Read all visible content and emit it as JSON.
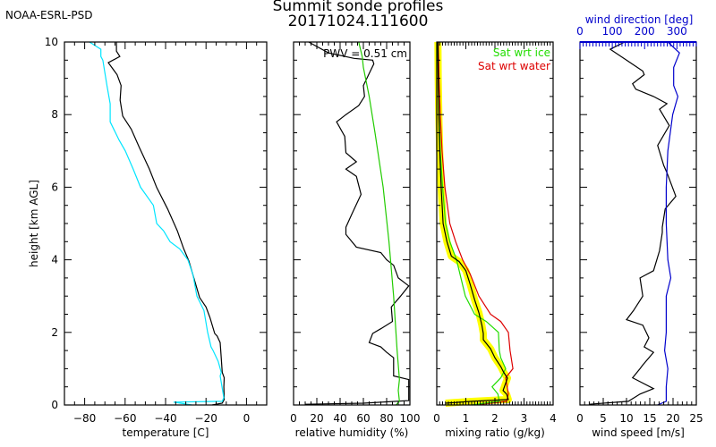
{
  "header": {
    "org": "NOAA-ESRL-PSD",
    "title": "Summit sonde profiles",
    "subtitle": "20171024.111600"
  },
  "colors": {
    "temperature": "#000000",
    "dewpoint": "#00e5ff",
    "rh": "#000000",
    "rh_ice": "#22cc00",
    "mixing": "#000000",
    "mixing_highlight": "#ffff00",
    "sat_ice": "#22dd00",
    "sat_water": "#dd0000",
    "wind_speed": "#000000",
    "wind_dir": "#0000cc"
  },
  "chart_data": [
    {
      "type": "line",
      "name": "temperature",
      "xlabel": "temperature [C]",
      "ylabel": "height [km AGL]",
      "xlim": [
        -90,
        10
      ],
      "ylim": [
        0,
        10
      ],
      "xticks": [
        -80,
        -60,
        -40,
        -20,
        0
      ],
      "yticks": [
        0,
        2,
        4,
        6,
        8,
        10
      ],
      "series": [
        {
          "name": "temperature",
          "color": "#000000",
          "points": [
            [
              -17,
              0
            ],
            [
              -12,
              0.05
            ],
            [
              -11,
              0.15
            ],
            [
              -11.2,
              0.5
            ],
            [
              -11,
              0.75
            ],
            [
              -12,
              0.9
            ],
            [
              -12.5,
              1.3
            ],
            [
              -13,
              1.72
            ],
            [
              -14.5,
              1.9
            ],
            [
              -15.7,
              1.97
            ],
            [
              -18,
              2.4
            ],
            [
              -20,
              2.7
            ],
            [
              -23.2,
              2.96
            ],
            [
              -26,
              3.5
            ],
            [
              -28.5,
              3.97
            ],
            [
              -31,
              4.3
            ],
            [
              -34.2,
              4.8
            ],
            [
              -39,
              5.4
            ],
            [
              -44.4,
              5.99
            ],
            [
              -48,
              6.5
            ],
            [
              -53,
              7.1
            ],
            [
              -57,
              7.6
            ],
            [
              -61.2,
              7.96
            ],
            [
              -62.5,
              8.4
            ],
            [
              -62,
              8.8
            ],
            [
              -64,
              9.1
            ],
            [
              -68.3,
              9.43
            ],
            [
              -62.6,
              9.6
            ],
            [
              -64.3,
              9.75
            ],
            [
              -64.3,
              10
            ]
          ]
        },
        {
          "name": "dewpoint",
          "color": "#00e5ff",
          "points": [
            [
              -27,
              0
            ],
            [
              -36,
              0.08
            ],
            [
              -12,
              0.1
            ],
            [
              -11.2,
              0.2
            ],
            [
              -13,
              0.8
            ],
            [
              -12.5,
              0.9
            ],
            [
              -14,
              1.2
            ],
            [
              -16.5,
              1.5
            ],
            [
              -17.5,
              1.6
            ],
            [
              -19.2,
              2.0
            ],
            [
              -21,
              2.6
            ],
            [
              -24.5,
              3.0
            ],
            [
              -26.5,
              3.6
            ],
            [
              -29,
              4.0
            ],
            [
              -33,
              4.3
            ],
            [
              -37.8,
              4.5
            ],
            [
              -41,
              4.8
            ],
            [
              -44.4,
              5.0
            ],
            [
              -46,
              5.5
            ],
            [
              -52.4,
              6.0
            ],
            [
              -56,
              6.5
            ],
            [
              -59.9,
              7.0
            ],
            [
              -63,
              7.3
            ],
            [
              -67.4,
              7.8
            ],
            [
              -67.4,
              8.3
            ],
            [
              -69,
              8.8
            ],
            [
              -71,
              9.5
            ],
            [
              -72,
              9.6
            ],
            [
              -72,
              9.8
            ],
            [
              -77.6,
              10
            ]
          ]
        }
      ]
    },
    {
      "type": "line",
      "name": "relative_humidity",
      "xlabel": "relative humidity (%)",
      "xlim": [
        0,
        100
      ],
      "ylim": [
        0,
        10
      ],
      "xticks": [
        0,
        20,
        40,
        60,
        80,
        100
      ],
      "annotation": "PWV = 0.51 cm",
      "series": [
        {
          "name": "RH",
          "color": "#000000",
          "points": [
            [
              10,
              0.02
            ],
            [
              60,
              0.05
            ],
            [
              99,
              0.12
            ],
            [
              99,
              0.3
            ],
            [
              99,
              0.7
            ],
            [
              86,
              0.8
            ],
            [
              86,
              1.0
            ],
            [
              86,
              1.3
            ],
            [
              80,
              1.45
            ],
            [
              75,
              1.6
            ],
            [
              65,
              1.72
            ],
            [
              68,
              1.97
            ],
            [
              75,
              2.1
            ],
            [
              85,
              2.3
            ],
            [
              84,
              2.7
            ],
            [
              92,
              3.0
            ],
            [
              99,
              3.28
            ],
            [
              90,
              3.5
            ],
            [
              86,
              3.85
            ],
            [
              80,
              4.0
            ],
            [
              75,
              4.2
            ],
            [
              54,
              4.35
            ],
            [
              45,
              4.7
            ],
            [
              45,
              4.9
            ],
            [
              50,
              5.25
            ],
            [
              58,
              5.8
            ],
            [
              54,
              6.3
            ],
            [
              45,
              6.5
            ],
            [
              54,
              6.7
            ],
            [
              45,
              6.95
            ],
            [
              44,
              7.4
            ],
            [
              37,
              7.8
            ],
            [
              45,
              8.0
            ],
            [
              56,
              8.25
            ],
            [
              61,
              8.5
            ],
            [
              60,
              8.8
            ],
            [
              63,
              9.0
            ],
            [
              66,
              9.2
            ],
            [
              69,
              9.4
            ],
            [
              68,
              9.5
            ],
            [
              52,
              9.55
            ],
            [
              30,
              9.7
            ],
            [
              13,
              10
            ]
          ]
        },
        {
          "name": "RH wrt ice",
          "color": "#22cc00",
          "points": [
            [
              88,
              0
            ],
            [
              91,
              0.1
            ],
            [
              90,
              0.4
            ],
            [
              91,
              0.7
            ],
            [
              89,
              1.5
            ],
            [
              86,
              3
            ],
            [
              82,
              4.5
            ],
            [
              77,
              6
            ],
            [
              70,
              7.5
            ],
            [
              65,
              8.5
            ],
            [
              60,
              9.3
            ],
            [
              59,
              9.6
            ],
            [
              56,
              10
            ]
          ]
        }
      ]
    },
    {
      "type": "line",
      "name": "mixing_ratio",
      "xlabel": "mixing ratio (g/kg)",
      "xlim": [
        0,
        4
      ],
      "ylim": [
        0,
        10
      ],
      "xticks": [
        0,
        1,
        2,
        3,
        4
      ],
      "legend": [
        "Sat wrt ice",
        "Sat wrt water"
      ],
      "legend_position": "top-right",
      "series": [
        {
          "name": "mixing ratio",
          "color": "#000000",
          "points": [
            [
              0.3,
              0.05
            ],
            [
              1.2,
              0.1
            ],
            [
              2.46,
              0.15
            ],
            [
              2.4,
              0.3
            ],
            [
              2.28,
              0.4
            ],
            [
              2.43,
              0.74
            ],
            [
              2.3,
              0.9
            ],
            [
              2.2,
              1.06
            ],
            [
              2.0,
              1.3
            ],
            [
              1.85,
              1.55
            ],
            [
              1.6,
              1.8
            ],
            [
              1.6,
              1.97
            ],
            [
              1.55,
              2.2
            ],
            [
              1.45,
              2.54
            ],
            [
              1.3,
              2.9
            ],
            [
              1.14,
              3.35
            ],
            [
              1.0,
              3.7
            ],
            [
              0.77,
              3.95
            ],
            [
              0.5,
              4.1
            ],
            [
              0.35,
              4.5
            ],
            [
              0.22,
              5.0
            ],
            [
              0.15,
              6.0
            ],
            [
              0.1,
              7.0
            ],
            [
              0.07,
              8.0
            ],
            [
              0.05,
              9.0
            ],
            [
              0.04,
              10
            ]
          ]
        },
        {
          "name": "Sat wrt ice",
          "color": "#22dd00",
          "points": [
            [
              1.2,
              0
            ],
            [
              2.15,
              0.1
            ],
            [
              2.1,
              0.3
            ],
            [
              1.9,
              0.5
            ],
            [
              2.2,
              0.75
            ],
            [
              2.37,
              1.0
            ],
            [
              2.2,
              1.3
            ],
            [
              2.15,
              1.5
            ],
            [
              2.12,
              2.0
            ],
            [
              1.7,
              2.3
            ],
            [
              1.3,
              2.5
            ],
            [
              0.98,
              3.0
            ],
            [
              0.8,
              3.6
            ],
            [
              0.68,
              4.0
            ],
            [
              0.45,
              4.5
            ],
            [
              0.3,
              5.0
            ],
            [
              0.2,
              6.0
            ],
            [
              0.12,
              7.0
            ],
            [
              0.08,
              8.0
            ],
            [
              0.05,
              9.0
            ],
            [
              0.03,
              10
            ]
          ]
        },
        {
          "name": "Sat wrt water",
          "color": "#dd0000",
          "points": [
            [
              1.3,
              0
            ],
            [
              2.4,
              0.1
            ],
            [
              2.46,
              0.3
            ],
            [
              2.37,
              0.75
            ],
            [
              2.62,
              1.0
            ],
            [
              2.52,
              1.5
            ],
            [
              2.46,
              2.0
            ],
            [
              2.2,
              2.3
            ],
            [
              1.85,
              2.5
            ],
            [
              1.45,
              3.0
            ],
            [
              1.15,
              3.6
            ],
            [
              0.89,
              4.0
            ],
            [
              0.65,
              4.5
            ],
            [
              0.45,
              5.0
            ],
            [
              0.28,
              6.0
            ],
            [
              0.18,
              7.0
            ],
            [
              0.12,
              8.0
            ],
            [
              0.08,
              9.0
            ],
            [
              0.05,
              10
            ]
          ]
        }
      ]
    },
    {
      "type": "line",
      "name": "wind",
      "xlabel": "wind speed [m/s]",
      "x2label": "wind direction [deg]",
      "xlim": [
        0,
        25
      ],
      "x2lim": [
        0,
        360
      ],
      "ylim": [
        0,
        10
      ],
      "xticks": [
        0,
        5,
        10,
        15,
        20,
        25
      ],
      "x2ticks": [
        0,
        100,
        200,
        300
      ],
      "series": [
        {
          "name": "wind speed",
          "color": "#000000",
          "axis": "bottom",
          "points": [
            [
              2,
              0.02
            ],
            [
              10.4,
              0.1
            ],
            [
              12.9,
              0.3
            ],
            [
              15.8,
              0.45
            ],
            [
              11.3,
              0.75
            ],
            [
              12.9,
              1.0
            ],
            [
              13.5,
              1.1
            ],
            [
              15.8,
              1.45
            ],
            [
              13.8,
              1.6
            ],
            [
              14.8,
              1.85
            ],
            [
              13.5,
              2.2
            ],
            [
              10,
              2.35
            ],
            [
              11.5,
              2.6
            ],
            [
              13.5,
              3.0
            ],
            [
              12.9,
              3.5
            ],
            [
              15.8,
              3.7
            ],
            [
              17.1,
              4.25
            ],
            [
              17.7,
              4.75
            ],
            [
              17.7,
              4.9
            ],
            [
              18.3,
              5.4
            ],
            [
              20.6,
              5.75
            ],
            [
              18.7,
              6.4
            ],
            [
              18,
              6.6
            ],
            [
              16.7,
              7.15
            ],
            [
              19.2,
              7.7
            ],
            [
              17.1,
              8.15
            ],
            [
              18.7,
              8.3
            ],
            [
              15.8,
              8.5
            ],
            [
              12,
              8.7
            ],
            [
              11.3,
              8.85
            ],
            [
              13.8,
              9.1
            ],
            [
              13.5,
              9.2
            ],
            [
              10,
              9.5
            ],
            [
              6.5,
              9.8
            ],
            [
              9.6,
              10
            ]
          ]
        },
        {
          "name": "wind direction",
          "color": "#0000cc",
          "axis": "top",
          "points": [
            [
              240,
              0
            ],
            [
              267,
              0.1
            ],
            [
              267,
              0.5
            ],
            [
              272,
              1.0
            ],
            [
              262,
              1.5
            ],
            [
              267,
              2.0
            ],
            [
              267,
              3.0
            ],
            [
              281,
              3.5
            ],
            [
              272,
              4.0
            ],
            [
              267,
              5.0
            ],
            [
              267,
              6.0
            ],
            [
              272,
              7.0
            ],
            [
              287,
              8.0
            ],
            [
              303,
              8.5
            ],
            [
              290,
              8.8
            ],
            [
              290,
              9.3
            ],
            [
              308,
              9.7
            ],
            [
              272,
              10
            ]
          ]
        }
      ]
    }
  ]
}
